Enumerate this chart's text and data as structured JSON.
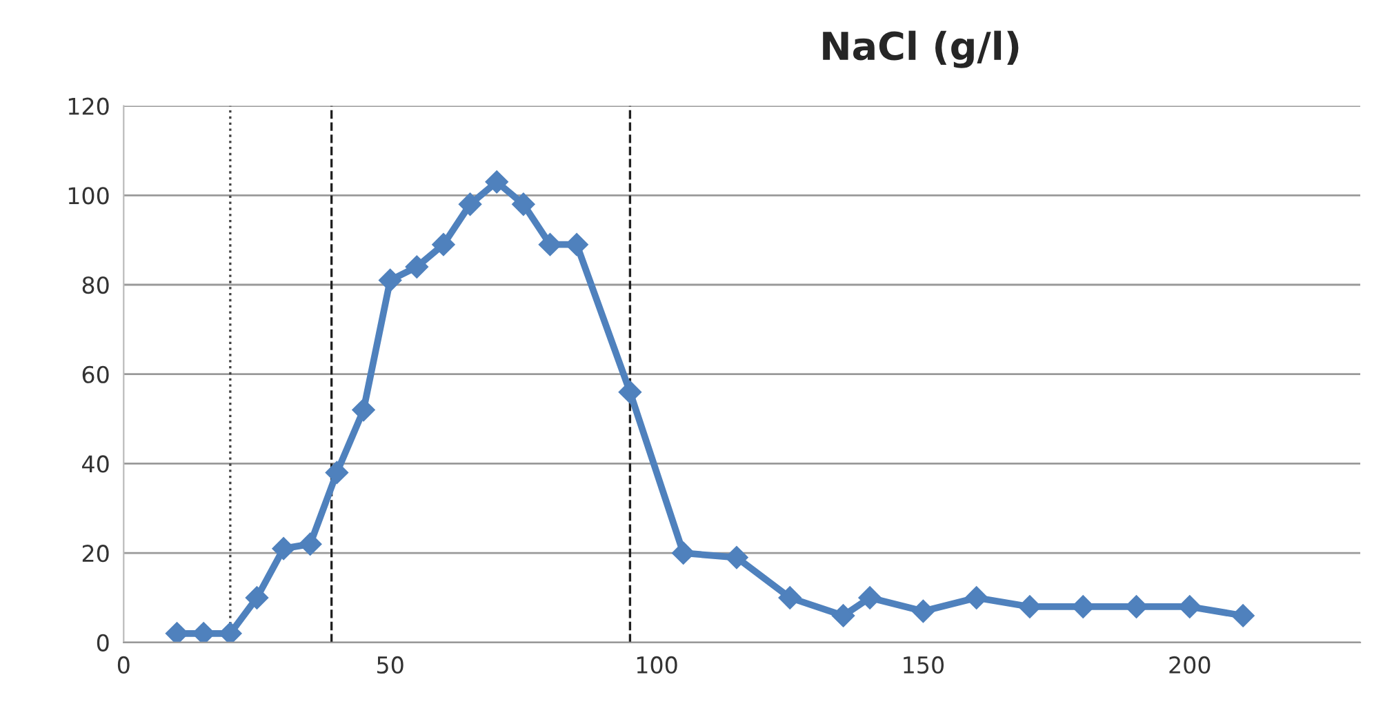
{
  "chart_data": {
    "type": "line",
    "title": "NaCl (g/l)",
    "x": [
      10,
      15,
      20,
      25,
      30,
      35,
      40,
      45,
      50,
      55,
      60,
      65,
      70,
      75,
      80,
      85,
      95,
      105,
      115,
      125,
      135,
      140,
      150,
      160,
      170,
      180,
      190,
      200,
      210
    ],
    "series": [
      {
        "color": "#4f81bd",
        "values": [
          2,
          2,
          2,
          10,
          21,
          22,
          38,
          52,
          81,
          84,
          89,
          98,
          103,
          98,
          89,
          89,
          56,
          20,
          19,
          10,
          6,
          10,
          7,
          10,
          8,
          8,
          8,
          8,
          6
        ]
      }
    ],
    "xlim": [
      0,
      232
    ],
    "xticks": [
      0,
      50,
      100,
      150,
      200
    ],
    "ylim": [
      0,
      120
    ],
    "yticks": [
      0,
      20,
      40,
      60,
      80,
      100,
      120
    ],
    "grid": "y",
    "marker": "diamond",
    "line_style": "solid",
    "ref_lines": [
      {
        "axis": "x",
        "value": 20,
        "color": "#404040",
        "line_style": "dotted"
      },
      {
        "axis": "x",
        "value": 39,
        "color": "#202020",
        "line_style": "dashed"
      },
      {
        "axis": "x",
        "value": 95,
        "color": "#202020",
        "line_style": "dashed"
      }
    ]
  }
}
